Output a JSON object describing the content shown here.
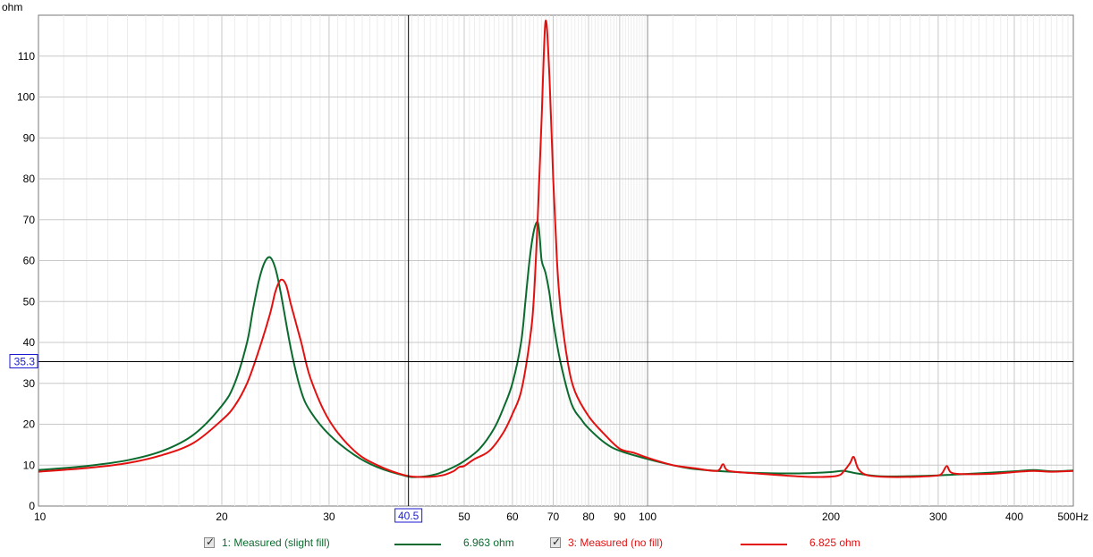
{
  "chart_data": {
    "type": "line",
    "ylabel": "ohm",
    "x_scale": "log",
    "xlim": [
      10,
      500
    ],
    "ylim": [
      0,
      120
    ],
    "x_ticks": [
      {
        "v": 10,
        "label": "10"
      },
      {
        "v": 20,
        "label": "20"
      },
      {
        "v": 30,
        "label": "30"
      },
      {
        "v": 40,
        "label": ""
      },
      {
        "v": 50,
        "label": "50"
      },
      {
        "v": 60,
        "label": "60"
      },
      {
        "v": 70,
        "label": "70"
      },
      {
        "v": 80,
        "label": "80"
      },
      {
        "v": 90,
        "label": "90"
      },
      {
        "v": 100,
        "label": "100"
      },
      {
        "v": 200,
        "label": "200"
      },
      {
        "v": 300,
        "label": "300"
      },
      {
        "v": 400,
        "label": "400"
      },
      {
        "v": 500,
        "label": "500Hz"
      }
    ],
    "y_ticks": [
      0,
      10,
      20,
      30,
      40,
      50,
      60,
      70,
      80,
      90,
      100,
      110
    ],
    "grid": true,
    "cursor": {
      "x": 40.5,
      "y": 35.3,
      "x_label": "40.5",
      "y_label": "35.3"
    },
    "series": [
      {
        "name": "1: Measured (slight fill)",
        "color": "#0b6b2e",
        "readout": "6.963 ohm",
        "points": [
          [
            10,
            8.8
          ],
          [
            12,
            9.8
          ],
          [
            14,
            11.2
          ],
          [
            16,
            13.5
          ],
          [
            18,
            17.5
          ],
          [
            20,
            24.5
          ],
          [
            21,
            30
          ],
          [
            22,
            40
          ],
          [
            22.5,
            48
          ],
          [
            23,
            55
          ],
          [
            23.5,
            59.5
          ],
          [
            24,
            60.8
          ],
          [
            24.5,
            58
          ],
          [
            25,
            52
          ],
          [
            26,
            38
          ],
          [
            27,
            28
          ],
          [
            28,
            23
          ],
          [
            30,
            17.5
          ],
          [
            33,
            12.5
          ],
          [
            36,
            9.5
          ],
          [
            40,
            7.4
          ],
          [
            42,
            7.1
          ],
          [
            45,
            7.8
          ],
          [
            48,
            9.5
          ],
          [
            50,
            11
          ],
          [
            53,
            14
          ],
          [
            56,
            19
          ],
          [
            58,
            24
          ],
          [
            60,
            30
          ],
          [
            62,
            40
          ],
          [
            63,
            50
          ],
          [
            64,
            60
          ],
          [
            65,
            67
          ],
          [
            66,
            69.5
          ],
          [
            66.5,
            66
          ],
          [
            67,
            60
          ],
          [
            68,
            57
          ],
          [
            69,
            52
          ],
          [
            70,
            45
          ],
          [
            72,
            35
          ],
          [
            75,
            25
          ],
          [
            78,
            21
          ],
          [
            80,
            19
          ],
          [
            85,
            15.5
          ],
          [
            90,
            13.5
          ],
          [
            100,
            11.5
          ],
          [
            110,
            10
          ],
          [
            120,
            9
          ],
          [
            140,
            8.3
          ],
          [
            160,
            8
          ],
          [
            180,
            8
          ],
          [
            200,
            8.3
          ],
          [
            210,
            8.6
          ],
          [
            220,
            8
          ],
          [
            240,
            7.3
          ],
          [
            270,
            7.3
          ],
          [
            300,
            7.5
          ],
          [
            350,
            8
          ],
          [
            400,
            8.5
          ],
          [
            430,
            8.8
          ],
          [
            460,
            8.5
          ],
          [
            500,
            8.7
          ]
        ]
      },
      {
        "name": "3: Measured (no fill)",
        "color": "#e31010",
        "readout": "6.825 ohm",
        "points": [
          [
            10,
            8.4
          ],
          [
            12,
            9.3
          ],
          [
            14,
            10.5
          ],
          [
            16,
            12.5
          ],
          [
            18,
            15.5
          ],
          [
            20,
            21
          ],
          [
            21,
            24.5
          ],
          [
            22,
            30
          ],
          [
            23,
            38
          ],
          [
            24,
            47
          ],
          [
            24.5,
            52.5
          ],
          [
            25,
            55.3
          ],
          [
            25.5,
            54
          ],
          [
            26,
            49
          ],
          [
            27,
            40
          ],
          [
            28,
            31
          ],
          [
            30,
            21
          ],
          [
            33,
            13.5
          ],
          [
            36,
            10
          ],
          [
            40,
            7.5
          ],
          [
            43,
            7.1
          ],
          [
            46,
            7.5
          ],
          [
            48,
            8.5
          ],
          [
            49,
            9.5
          ],
          [
            50,
            9.8
          ],
          [
            52,
            11.5
          ],
          [
            55,
            13.5
          ],
          [
            58,
            18
          ],
          [
            60,
            22.5
          ],
          [
            62,
            28
          ],
          [
            64,
            40
          ],
          [
            65,
            50
          ],
          [
            66,
            70
          ],
          [
            67,
            95
          ],
          [
            68,
            118.5
          ],
          [
            69,
            105
          ],
          [
            70,
            80
          ],
          [
            71,
            60
          ],
          [
            72,
            48
          ],
          [
            74,
            35
          ],
          [
            76,
            28
          ],
          [
            80,
            22
          ],
          [
            85,
            17.5
          ],
          [
            90,
            14
          ],
          [
            95,
            13
          ],
          [
            100,
            11.8
          ],
          [
            110,
            10
          ],
          [
            120,
            9.2
          ],
          [
            130,
            8.6
          ],
          [
            133,
            10.2
          ],
          [
            136,
            8.6
          ],
          [
            150,
            8
          ],
          [
            170,
            7.4
          ],
          [
            190,
            7.1
          ],
          [
            205,
            7.4
          ],
          [
            210,
            8.5
          ],
          [
            215,
            10.5
          ],
          [
            218,
            12
          ],
          [
            222,
            9
          ],
          [
            230,
            7.5
          ],
          [
            250,
            7.1
          ],
          [
            280,
            7.2
          ],
          [
            300,
            7.5
          ],
          [
            305,
            8.2
          ],
          [
            310,
            9.8
          ],
          [
            315,
            8.2
          ],
          [
            330,
            7.8
          ],
          [
            370,
            7.9
          ],
          [
            400,
            8.3
          ],
          [
            430,
            8.6
          ],
          [
            460,
            8.4
          ],
          [
            500,
            8.6
          ]
        ]
      }
    ]
  }
}
